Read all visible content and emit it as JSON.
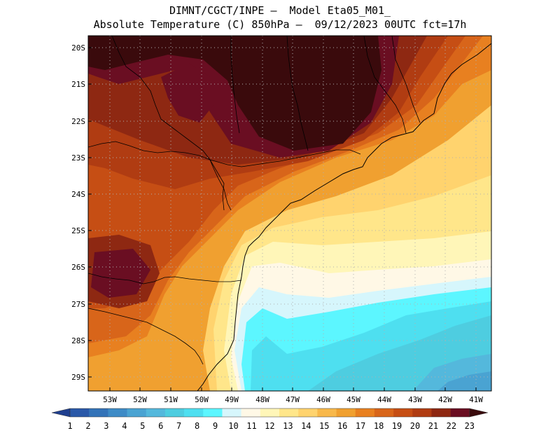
{
  "header": {
    "line1": "DIMNT/CGCT/INPE –  Model Eta05_M01_",
    "line2": "Absolute Temperature (C) 850hPa –  09/12/2023 00UTC fct=17h"
  },
  "map": {
    "latitude_labels": [
      "20S",
      "21S",
      "22S",
      "23S",
      "24S",
      "25S",
      "26S",
      "27S",
      "28S",
      "29S"
    ],
    "longitude_labels": [
      "53W",
      "52W",
      "51W",
      "50W",
      "49W",
      "48W",
      "47W",
      "46W",
      "45W",
      "44W",
      "43W",
      "42W",
      "41W"
    ]
  },
  "colorbar": {
    "labels": [
      "1",
      "2",
      "3",
      "4",
      "5",
      "6",
      "7",
      "8",
      "9",
      "10",
      "11",
      "12",
      "13",
      "14",
      "15",
      "16",
      "17",
      "18",
      "19",
      "20",
      "21",
      "22",
      "23"
    ],
    "colors": [
      "#1f3f8f",
      "#2a58a8",
      "#3373b8",
      "#3e8bc6",
      "#4aa3d2",
      "#54b8dc",
      "#4ecde0",
      "#4edff0",
      "#5cf6ff",
      "#d6f6fc",
      "#fff8e6",
      "#fff6b8",
      "#ffe68a",
      "#ffd36e",
      "#f8b84a",
      "#f0a030",
      "#e88020",
      "#d8651a",
      "#c64e14",
      "#b03c12",
      "#8e2812",
      "#6a0e22",
      "#3a0a0c"
    ]
  }
}
